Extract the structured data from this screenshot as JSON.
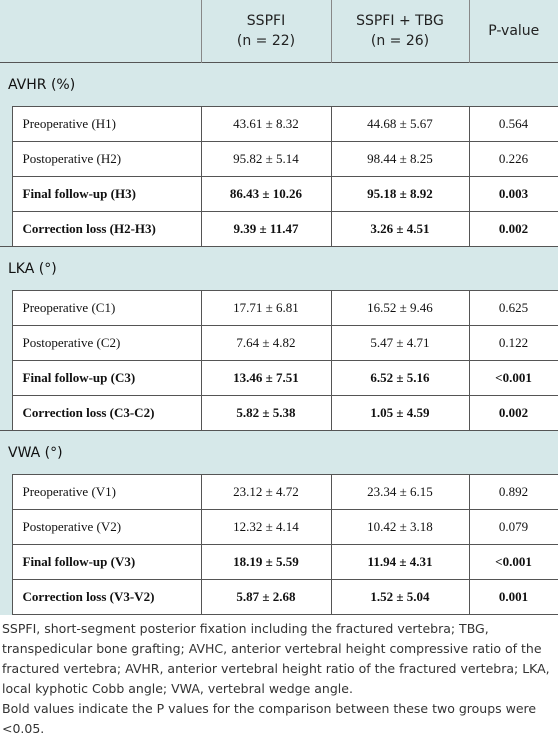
{
  "table": {
    "header": [
      {
        "lines": [
          "SSPFI",
          "(n = 22)"
        ]
      },
      {
        "lines": [
          "SSPFI + TBG",
          "(n = 26)"
        ]
      },
      {
        "lines": [
          "P-value"
        ]
      }
    ],
    "sections": [
      {
        "title": "AVHR (%)",
        "rows": [
          {
            "label": "Preoperative (H1)",
            "cells": [
              "43.61 ± 8.32",
              "44.68 ± 5.67",
              "0.564"
            ],
            "bold": false
          },
          {
            "label": "Postoperative (H2)",
            "cells": [
              "95.82 ± 5.14",
              "98.44 ± 8.25",
              "0.226"
            ],
            "bold": false
          },
          {
            "label": "Final follow-up (H3)",
            "cells": [
              "86.43 ± 10.26",
              "95.18 ± 8.92",
              "0.003"
            ],
            "bold": true
          },
          {
            "label": "Correction loss (H2-H3)",
            "cells": [
              "9.39 ± 11.47",
              "3.26 ± 4.51",
              "0.002"
            ],
            "bold": true
          }
        ]
      },
      {
        "title": "LKA (°)",
        "rows": [
          {
            "label": "Preoperative (C1)",
            "cells": [
              "17.71 ± 6.81",
              "16.52 ± 9.46",
              "0.625"
            ],
            "bold": false
          },
          {
            "label": "Postoperative (C2)",
            "cells": [
              "7.64 ± 4.82",
              "5.47 ± 4.71",
              "0.122"
            ],
            "bold": false
          },
          {
            "label": "Final follow-up (C3)",
            "cells": [
              "13.46 ± 7.51",
              "6.52 ± 5.16",
              "<0.001"
            ],
            "bold": true
          },
          {
            "label": "Correction loss (C3-C2)",
            "cells": [
              "5.82 ± 5.38",
              "1.05 ± 4.59",
              "0.002"
            ],
            "bold": true
          }
        ]
      },
      {
        "title": "VWA (°)",
        "rows": [
          {
            "label": "Preoperative (V1)",
            "cells": [
              "23.12 ± 4.72",
              "23.34 ± 6.15",
              "0.892"
            ],
            "bold": false
          },
          {
            "label": "Postoperative (V2)",
            "cells": [
              "12.32 ± 4.14",
              "10.42 ± 3.18",
              "0.079"
            ],
            "bold": false
          },
          {
            "label": "Final follow-up (V3)",
            "cells": [
              "18.19 ± 5.59",
              "11.94 ± 4.31",
              "<0.001"
            ],
            "bold": true
          },
          {
            "label": "Correction loss (V3-V2)",
            "cells": [
              "5.87 ± 2.68",
              "1.52 ± 5.04",
              "0.001"
            ],
            "bold": true
          }
        ]
      }
    ],
    "footnotes": [
      "SSPFI, short-segment posterior fixation including the fractured vertebra; TBG, transpedicular bone grafting; AVHC, anterior vertebral height compressive ratio of the fractured vertebra; AVHR, anterior vertebral height ratio of the fractured vertebra; LKA, local kyphotic Cobb angle; VWA, vertebral wedge angle.",
      "Bold values indicate the P values for the comparison between these two groups were <0.05."
    ]
  }
}
